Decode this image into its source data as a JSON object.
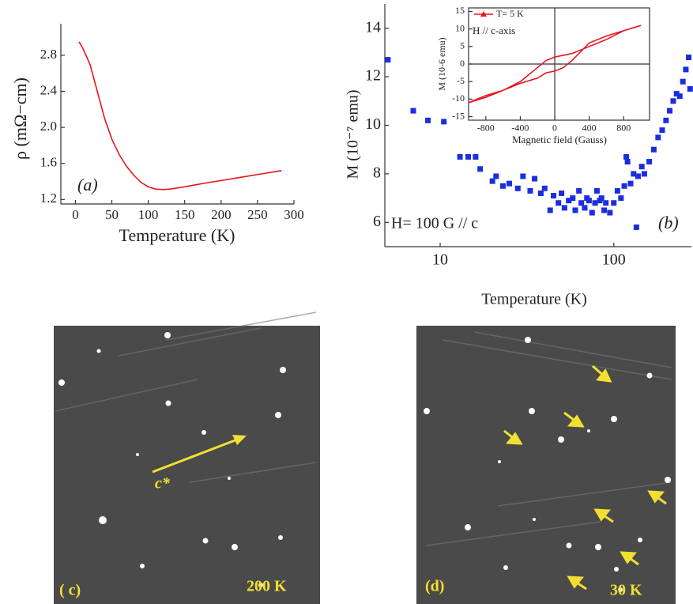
{
  "chart_data": [
    {
      "type": "line",
      "xlabel": "Temperature  (K)",
      "ylabel": "ρ (mΩ−cm)",
      "annotations": [
        "(a)"
      ],
      "xlim": [
        -20,
        300
      ],
      "ylim": [
        1.15,
        3.15
      ],
      "xticks": [
        0,
        50,
        100,
        150,
        200,
        250,
        300
      ],
      "yticks": [
        1.2,
        1.6,
        {
          "value": 2,
          "label": "2.0"
        },
        2.4,
        2.8
      ],
      "series": [
        {
          "color": "#e8141c",
          "x": [
            5,
            10,
            20,
            30,
            40,
            50,
            60,
            70,
            80,
            90,
            100,
            110,
            120,
            130,
            150,
            170,
            200,
            230,
            260,
            283
          ],
          "values": [
            2.95,
            2.88,
            2.7,
            2.4,
            2.1,
            1.87,
            1.7,
            1.57,
            1.47,
            1.39,
            1.34,
            1.315,
            1.31,
            1.315,
            1.34,
            1.37,
            1.41,
            1.45,
            1.49,
            1.52
          ]
        }
      ]
    },
    {
      "type": "scatter",
      "xlabel": "Temperature (K)",
      "ylabel": "M  (10⁻⁷ emu)",
      "annotations": [
        "H= 100 G // c",
        "(b)"
      ],
      "xscale": "log",
      "xlim": [
        4.8,
        280
      ],
      "ylim": [
        5,
        15
      ],
      "xticks": [
        10,
        100
      ],
      "yticks": [
        6,
        8,
        10,
        12,
        14
      ],
      "color": "#1a2ee0",
      "x": [
        5,
        7,
        8.5,
        10.5,
        13,
        14.5,
        16,
        17,
        20,
        21,
        23,
        25,
        28,
        30,
        33,
        35,
        38,
        40,
        43,
        45,
        48,
        50,
        52,
        55,
        58,
        60,
        63,
        65,
        68,
        70,
        72,
        75,
        78,
        80,
        83,
        85,
        88,
        90,
        95,
        100,
        105,
        110,
        115,
        118,
        120,
        125,
        130,
        135,
        138,
        145,
        150,
        160,
        170,
        180,
        190,
        200,
        210,
        220,
        230,
        240,
        250,
        260,
        270,
        275
      ],
      "values": [
        12.7,
        10.6,
        10.2,
        10.15,
        8.7,
        8.7,
        8.7,
        8.2,
        7.7,
        7.9,
        7.5,
        7.6,
        7.4,
        7.9,
        7.3,
        7.8,
        7.2,
        7.4,
        6.5,
        7.1,
        6.8,
        7.2,
        6.6,
        6.9,
        7.0,
        6.5,
        7.3,
        6.8,
        6.6,
        7.0,
        6.9,
        6.4,
        6.8,
        7.3,
        6.9,
        7.0,
        6.5,
        6.8,
        6.4,
        6.8,
        7.3,
        7.0,
        7.5,
        8.7,
        8.5,
        7.6,
        8.0,
        5.8,
        7.9,
        8.3,
        8.0,
        8.5,
        9.0,
        9.5,
        9.8,
        10.2,
        10.6,
        11.0,
        11.3,
        11.2,
        11.8,
        12.3,
        12.8,
        11.5
      ]
    },
    {
      "type": "line",
      "xlabel": "Magnetic field (Gauss)",
      "ylabel": "M (10-6 emu)",
      "annotations": [
        "H // c-axis"
      ],
      "xlim": [
        -1000,
        1100
      ],
      "ylim": [
        -16,
        16
      ],
      "xticks": [
        -800,
        -400,
        0,
        400,
        800
      ],
      "yticks": [
        15,
        10,
        5,
        0,
        -5,
        -10,
        -15
      ],
      "series": [
        {
          "name": "T= 5 K",
          "color": "#e8141c",
          "x": [
            -1000,
            -800,
            -600,
            -400,
            -200,
            -100,
            0,
            100,
            200,
            400,
            600,
            800,
            1000,
            800,
            600,
            400,
            200,
            100,
            0,
            -100,
            -200,
            -400,
            -600,
            -800,
            -1000
          ],
          "values": [
            -11,
            -9.5,
            -7.5,
            -5.5,
            -4,
            -2.5,
            -2,
            -1,
            1,
            6,
            8,
            9.5,
            11,
            9.5,
            7,
            5,
            3,
            2.5,
            2,
            1,
            -1,
            -5,
            -7.5,
            -9,
            -11
          ]
        }
      ]
    }
  ],
  "panels": [
    {
      "label": "( c)",
      "annotation": "200 K",
      "arrow_label": "c*"
    },
    {
      "label": "(d)",
      "annotation": "30 K"
    }
  ]
}
